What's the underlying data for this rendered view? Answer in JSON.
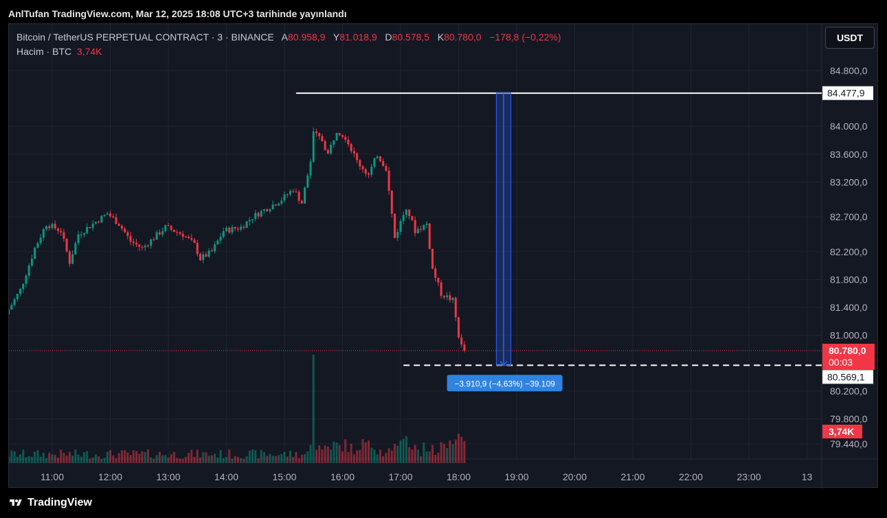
{
  "header": {
    "published_text": "AnlTufan TradingView.com, Mar 12, 2025 18:08 UTC+3 tarihinde yayınlandı"
  },
  "legend": {
    "symbol": "Bitcoin / TetherUS PERPETUAL CONTRACT · 3 · BINANCE",
    "open_label": "A",
    "open_value": "80.958,9",
    "high_label": "Y",
    "high_value": "81.018,9",
    "low_label": "D",
    "low_value": "80.578,5",
    "close_label": "K",
    "close_value": "80.780,0",
    "change": "−178,8 (−0,22%)",
    "volume_label": "Hacim · BTC",
    "volume_value": "3,74K"
  },
  "currency_button": "USDT",
  "footer": {
    "brand": "TradingView"
  },
  "chart_data": {
    "type": "candlestick",
    "interval_minutes": 3,
    "y_ticks": [
      {
        "value": 84800,
        "label": "84.800,0"
      },
      {
        "value": 84000,
        "label": "84.000,0"
      },
      {
        "value": 83600,
        "label": "83.600,0"
      },
      {
        "value": 83200,
        "label": "83.200,0"
      },
      {
        "value": 82700,
        "label": "82.700,0"
      },
      {
        "value": 82200,
        "label": "82.200,0"
      },
      {
        "value": 81800,
        "label": "81.800,0"
      },
      {
        "value": 81400,
        "label": "81.400,0"
      },
      {
        "value": 81000,
        "label": "81.000,0"
      },
      {
        "value": 80200,
        "label": "80.200,0"
      },
      {
        "value": 79800,
        "label": "79.800,0"
      },
      {
        "value": 79440,
        "label": "79.440,0"
      }
    ],
    "x_ticks": [
      {
        "hour": 11,
        "label": "11:00"
      },
      {
        "hour": 12,
        "label": "12:00"
      },
      {
        "hour": 13,
        "label": "13:00"
      },
      {
        "hour": 14,
        "label": "14:00"
      },
      {
        "hour": 15,
        "label": "15:00"
      },
      {
        "hour": 16,
        "label": "16:00"
      },
      {
        "hour": 17,
        "label": "17:00"
      },
      {
        "hour": 18,
        "label": "18:00"
      },
      {
        "hour": 19,
        "label": "19:00"
      },
      {
        "hour": 20,
        "label": "20:00"
      },
      {
        "hour": 21,
        "label": "21:00"
      },
      {
        "hour": 22,
        "label": "22:00"
      },
      {
        "hour": 23,
        "label": "23:00"
      },
      {
        "hour": 24,
        "label": "13"
      }
    ],
    "time_range_hours": [
      10.25,
      24.0
    ],
    "price_series": [
      {
        "time": 10.25,
        "price": 81300
      },
      {
        "time": 10.5,
        "price": 81650
      },
      {
        "time": 10.75,
        "price": 82250
      },
      {
        "time": 10.95,
        "price": 82600
      },
      {
        "time": 11.2,
        "price": 82500
      },
      {
        "time": 11.35,
        "price": 82050
      },
      {
        "time": 11.5,
        "price": 82450
      },
      {
        "time": 11.75,
        "price": 82600
      },
      {
        "time": 12.0,
        "price": 82750
      },
      {
        "time": 12.2,
        "price": 82600
      },
      {
        "time": 12.4,
        "price": 82350
      },
      {
        "time": 12.6,
        "price": 82250
      },
      {
        "time": 12.8,
        "price": 82400
      },
      {
        "time": 13.0,
        "price": 82550
      },
      {
        "time": 13.3,
        "price": 82450
      },
      {
        "time": 13.5,
        "price": 82300
      },
      {
        "time": 13.6,
        "price": 82100
      },
      {
        "time": 13.8,
        "price": 82200
      },
      {
        "time": 14.0,
        "price": 82500
      },
      {
        "time": 14.3,
        "price": 82550
      },
      {
        "time": 14.5,
        "price": 82700
      },
      {
        "time": 14.8,
        "price": 82850
      },
      {
        "time": 15.0,
        "price": 82950
      },
      {
        "time": 15.2,
        "price": 83100
      },
      {
        "time": 15.35,
        "price": 82900
      },
      {
        "time": 15.5,
        "price": 83500
      },
      {
        "time": 15.55,
        "price": 83900
      },
      {
        "time": 15.7,
        "price": 83800
      },
      {
        "time": 15.8,
        "price": 83600
      },
      {
        "time": 15.95,
        "price": 83950
      },
      {
        "time": 16.1,
        "price": 83850
      },
      {
        "time": 16.3,
        "price": 83500
      },
      {
        "time": 16.5,
        "price": 83300
      },
      {
        "time": 16.65,
        "price": 83600
      },
      {
        "time": 16.8,
        "price": 83400
      },
      {
        "time": 16.95,
        "price": 82400
      },
      {
        "time": 17.15,
        "price": 82850
      },
      {
        "time": 17.3,
        "price": 82500
      },
      {
        "time": 17.5,
        "price": 82600
      },
      {
        "time": 17.6,
        "price": 81950
      },
      {
        "time": 17.75,
        "price": 81600
      },
      {
        "time": 17.95,
        "price": 81500
      },
      {
        "time": 18.05,
        "price": 81000
      },
      {
        "time": 18.12,
        "price": 80780
      }
    ],
    "volume_spike": {
      "time": 15.5
    },
    "current_price": {
      "label": "80.780,0",
      "countdown": "00:03",
      "value": 80780
    },
    "high_line": {
      "label": "84.477,9",
      "value": 84477.9
    },
    "target_line": {
      "label": "80.569,1",
      "value": 80569.1
    },
    "volume_label": "3,74K",
    "measure": {
      "label": "−3.910,9 (−4,63%) −39.109"
    },
    "colors": {
      "up": "#089981",
      "down": "#f23645",
      "accent": "#2962ff",
      "grid": "#1f2330"
    }
  }
}
